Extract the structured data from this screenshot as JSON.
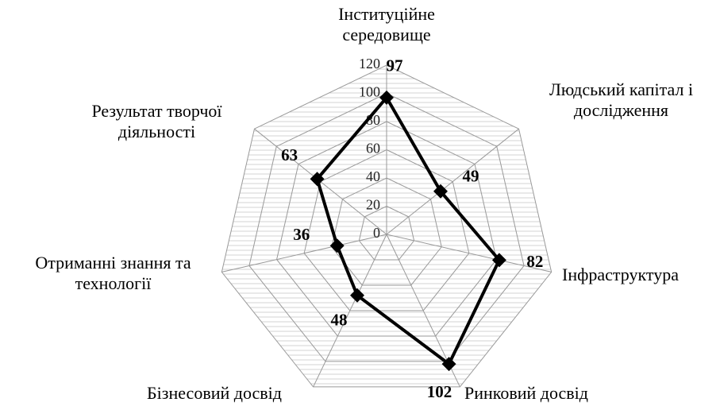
{
  "chart_data": {
    "type": "radar",
    "categories": [
      "Інституційне середовище",
      "Людський капітал і дослідження",
      "Інфраструктура",
      "Ринковий досвід",
      "Бізнесовий досвід",
      "Отриманні знання та технології",
      "Результат творчої діяльності"
    ],
    "values": [
      97,
      49,
      82,
      102,
      48,
      36,
      63
    ],
    "color": "#000000",
    "ylim": [
      0,
      120
    ],
    "yticks": [
      0,
      20,
      40,
      60,
      80,
      100,
      120
    ],
    "grid": true
  }
}
